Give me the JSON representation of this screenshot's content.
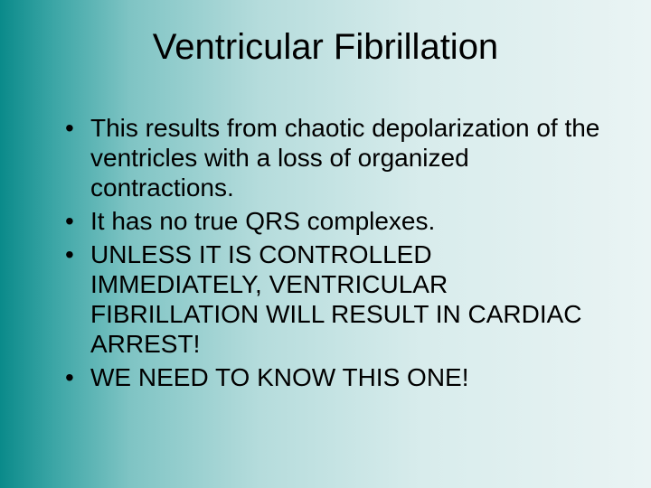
{
  "slide": {
    "title": "Ventricular Fibrillation",
    "bullets": [
      "This results from chaotic depolarization of the ventricles with a loss of organized contractions.",
      "It has no true QRS complexes.",
      "UNLESS IT IS CONTROLLED IMMEDIATELY, VENTRICULAR FIBRILLATION WILL RESULT IN CARDIAC ARREST!",
      "WE NEED TO KNOW THIS ONE!"
    ],
    "background_gradient": {
      "direction": "left-to-right",
      "stops": [
        "#0a8a8a",
        "#3aa5a5",
        "#7fc4c4",
        "#b5dcdc",
        "#d8ecec",
        "#eaf4f4"
      ]
    },
    "text_color": "#000000",
    "title_fontsize": 40,
    "bullet_fontsize": 28,
    "font_family": "Arial"
  }
}
